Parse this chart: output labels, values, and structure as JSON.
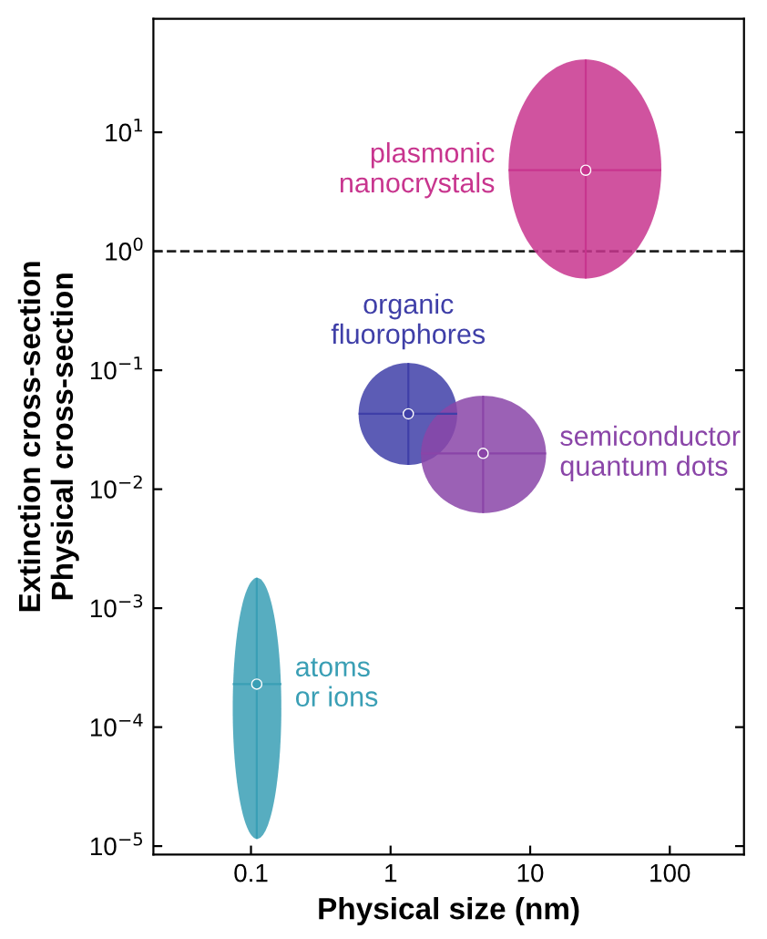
{
  "chart_data": {
    "type": "scatter",
    "xlabel": "Physical size (nm)",
    "ylabel": "Extinction cross-section\nPhysical cross-section",
    "log": "xy",
    "xlim": [
      0.02,
      340
    ],
    "ylim": [
      8.5e-06,
      90
    ],
    "xticks": [
      0.1,
      1,
      10,
      100
    ],
    "yticks": [
      {
        "value": 1e-05,
        "label": "10$^{−5}$"
      },
      {
        "value": 0.0001,
        "label": "10$^{−4}$"
      },
      {
        "value": 0.001,
        "label": "10$^{−3}$"
      },
      {
        "value": 0.01,
        "label": "10$^{−2}$"
      },
      {
        "value": 0.1,
        "label": "10$^{−1}$"
      },
      {
        "value": 1,
        "label": "10$^{0}$"
      },
      {
        "value": 10,
        "label": "10$^{1}$"
      }
    ],
    "ref_lines": [
      {
        "axis": "y",
        "value": 1,
        "line_style": "dashed",
        "color": "#222222"
      }
    ],
    "grid": false,
    "legend": false,
    "series": [
      {
        "name": "plasmonic\nnanocrystals",
        "color": "#c8358e",
        "x": [
          25
        ],
        "values": [
          4.8
        ],
        "xerrors": [
          [
            7,
            87
          ]
        ],
        "errors": [
          [
            0.59,
            41
          ]
        ]
      },
      {
        "name": "organic\nfluorophores",
        "color": "#3f3fa8",
        "x": [
          1.34
        ],
        "values": [
          0.043
        ],
        "xerrors": [
          [
            0.59,
            3.0
          ]
        ],
        "errors": [
          [
            0.016,
            0.115
          ]
        ]
      },
      {
        "name": "semiconductor\nquantum dots",
        "color": "#8a45a8",
        "x": [
          4.6
        ],
        "values": [
          0.02
        ],
        "xerrors": [
          [
            1.65,
            13
          ]
        ],
        "errors": [
          [
            0.0063,
            0.061
          ]
        ]
      },
      {
        "name": "atoms\nor ions",
        "color": "#3a9fb5",
        "x": [
          0.11
        ],
        "values": [
          0.00023
        ],
        "xerrors": [
          [
            0.074,
            0.165
          ]
        ],
        "errors": [
          [
            1.15e-05,
            0.0018
          ]
        ]
      }
    ]
  }
}
